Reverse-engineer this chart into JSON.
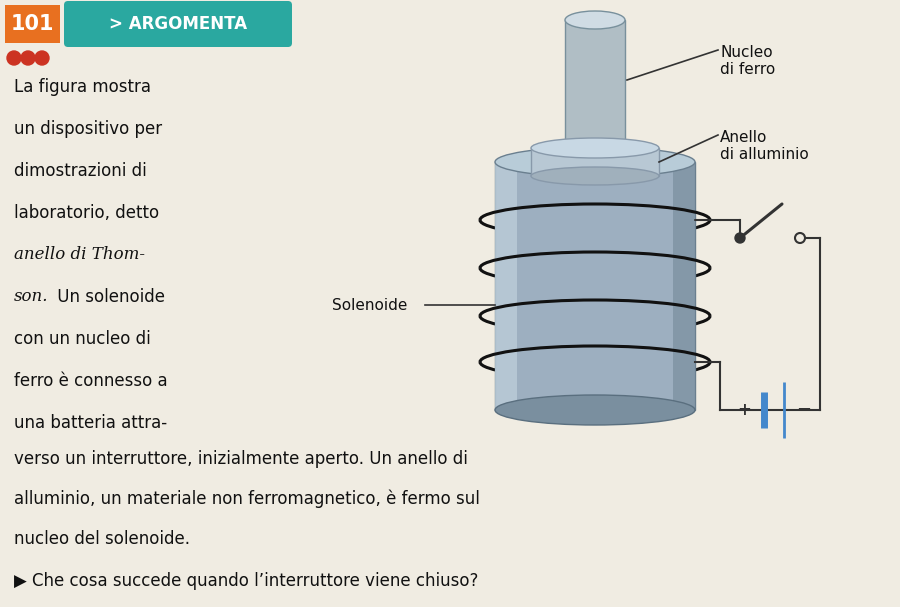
{
  "bg_color": "#f0ece2",
  "title_num": "101",
  "title_num_bg": "#e87020",
  "title_label": "> ARGOMENTA",
  "title_label_bg": "#2aa8a0",
  "dots_color": "#cc3322",
  "body_text_lines": [
    "La figura mostra",
    "un dispositivo per",
    "dimostrazioni di",
    "laboratorio, detto",
    "anello di Thom-",
    "son. Un solenoide",
    "con un nucleo di",
    "ferro è connesso a",
    "una batteria attra-"
  ],
  "italic_lines": [
    4,
    5
  ],
  "bottom_text_lines": [
    "verso un interruttore, inizialmente aperto. Un anello di",
    "alluminio, un materiale non ferromagnetico, è fermo sul",
    "nucleo del solenoide."
  ],
  "question_text": "Che cosa succede quando l’interruttore viene chiuso?",
  "label_nucleo": "Nucleo\ndi ferro",
  "label_anello": "Anello\ndi alluminio",
  "label_solenoide": "Solenoide",
  "label_plus": "+",
  "label_minus": "−",
  "solenoid_wire_color": "#111111",
  "battery_line_color": "#4488cc",
  "circuit_line_color": "#333333",
  "switch_color": "#333333",
  "cyl_color": "#9dafc0",
  "cyl_edge": "#6a7f8f",
  "rod_color": "#b0bec5",
  "rod_edge": "#78909c"
}
